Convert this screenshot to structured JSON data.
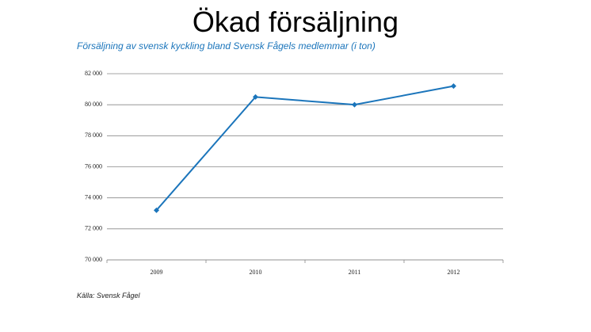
{
  "chart_data": {
    "type": "line",
    "title": "Ökad försäljning",
    "subtitle": "Försäljning av svensk kyckling bland Svensk Fågels medlemmar (i ton)",
    "source": "Källa: Svensk Fågel",
    "categories": [
      "2009",
      "2010",
      "2011",
      "2012"
    ],
    "series": [
      {
        "name": "Försäljning",
        "color": "#1b75bb",
        "values": [
          73200,
          80500,
          80000,
          81200
        ]
      }
    ],
    "ylim": [
      70000,
      82000
    ],
    "yticks": [
      {
        "value": 70000,
        "label": "70 000"
      },
      {
        "value": 72000,
        "label": "72 000"
      },
      {
        "value": 74000,
        "label": "74 000"
      },
      {
        "value": 76000,
        "label": "76 000"
      },
      {
        "value": 78000,
        "label": "78 000"
      },
      {
        "value": 80000,
        "label": "80 000"
      },
      {
        "value": 82000,
        "label": "82 000"
      }
    ],
    "grid": true
  }
}
